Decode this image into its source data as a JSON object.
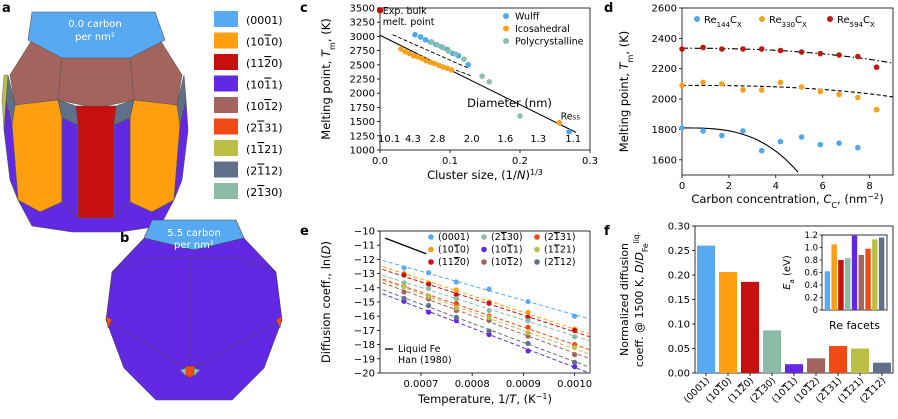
{
  "panels": {
    "a": {
      "letter": "a",
      "label_line1": "0.0 carbon",
      "label_line2": "per nm²",
      "legend": [
        {
          "label": "(0001)",
          "color": "#57aaf2"
        },
        {
          "label": "(1010)",
          "color": "#ff9f0f"
        },
        {
          "label": "(1120)",
          "color": "#c5100e"
        },
        {
          "label": "(1011)",
          "color": "#6328e3"
        },
        {
          "label": "(1012)",
          "color": "#a4645e"
        },
        {
          "label": "(2131)",
          "color": "#f24a14"
        },
        {
          "label": "(1121)",
          "color": "#bcbf45"
        },
        {
          "label": "(2112)",
          "color": "#5f7088"
        },
        {
          "label": "(2130)",
          "color": "#8cbca8"
        }
      ]
    },
    "b": {
      "letter": "b",
      "label_line1": "5.5 carbon",
      "label_line2": "per nm²"
    }
  },
  "chart_data": [
    {
      "id": "c",
      "letter": "c",
      "type": "scatter",
      "ylabel": "Melting point, T_m, (K)",
      "xlabel": "Cluster size, (1/N)^1/3",
      "xlim": [
        0.0,
        0.3
      ],
      "ylim": [
        1000,
        3500
      ],
      "xticks": [
        0.0,
        0.1,
        0.2,
        0.3
      ],
      "xtick_labels": [
        "0.0",
        "0.1",
        "0.2",
        "0.3"
      ],
      "yticks": [
        1000,
        1250,
        1500,
        1750,
        2000,
        2250,
        2500,
        2750,
        3000,
        3250,
        3500
      ],
      "ytick_labels": [
        "1000",
        "1250",
        "1500",
        "1750",
        "2000",
        "2250",
        "2500",
        "2750",
        "3000",
        "3250",
        "3500"
      ],
      "secondary_axis_title": "Diameter (nm)",
      "diameter_labels": [
        {
          "text": "10.1",
          "x": 0.013
        },
        {
          "text": "4.3",
          "x": 0.047
        },
        {
          "text": "2.8",
          "x": 0.082
        },
        {
          "text": "2.0",
          "x": 0.131
        },
        {
          "text": "1.6",
          "x": 0.179
        },
        {
          "text": "1.3",
          "x": 0.226
        },
        {
          "text": "1.1",
          "x": 0.276
        }
      ],
      "annotations": {
        "exp_line1": "Exp. bulk",
        "exp_line2": "melt. point",
        "re55": "Re₅₅"
      },
      "exp_point": {
        "x": 0.0,
        "y": 3459
      },
      "series": [
        {
          "name": "Wulff",
          "color": "#4ea8ea",
          "points": [
            [
              0.05,
              3030
            ],
            [
              0.058,
              2990
            ],
            [
              0.065,
              2940
            ],
            [
              0.072,
              2900
            ],
            [
              0.08,
              2855
            ],
            [
              0.088,
              2815
            ],
            [
              0.096,
              2770
            ],
            [
              0.104,
              2700
            ],
            [
              0.112,
              2660
            ],
            [
              0.126,
              2500
            ],
            [
              0.27,
              1320
            ]
          ]
        },
        {
          "name": "Icosahedral",
          "color": "#f7a21b",
          "points": [
            [
              0.03,
              2780
            ],
            [
              0.036,
              2730
            ],
            [
              0.042,
              2700
            ],
            [
              0.048,
              2660
            ],
            [
              0.054,
              2640
            ],
            [
              0.06,
              2610
            ],
            [
              0.066,
              2570
            ],
            [
              0.072,
              2545
            ],
            [
              0.078,
              2520
            ],
            [
              0.084,
              2490
            ],
            [
              0.09,
              2460
            ],
            [
              0.096,
              2440
            ],
            [
              0.102,
              2410
            ],
            [
              0.256,
              1480
            ]
          ]
        },
        {
          "name": "Polycrystalline",
          "color": "#8dbfae",
          "points": [
            [
              0.074,
              2900
            ],
            [
              0.082,
              2850
            ],
            [
              0.09,
              2800
            ],
            [
              0.098,
              2740
            ],
            [
              0.108,
              2690
            ],
            [
              0.12,
              2600
            ],
            [
              0.146,
              2300
            ],
            [
              0.156,
              2200
            ],
            [
              0.2,
              1600
            ]
          ]
        }
      ],
      "fit_line": {
        "x": [
          0.0,
          0.28
        ],
        "y": [
          3020,
          1310
        ]
      },
      "dashed_lines": [
        {
          "x": [
            0.018,
            0.128
          ],
          "y": [
            3030,
            2430
          ]
        },
        {
          "x": [
            0.028,
            0.132
          ],
          "y": [
            2770,
            2300
          ]
        }
      ]
    },
    {
      "id": "d",
      "letter": "d",
      "type": "scatter",
      "ylabel": "Melting point, T_m, (K)",
      "xlabel": "Carbon concentration, C_C, (nm⁻²)",
      "xlim": [
        0,
        9
      ],
      "ylim": [
        1500,
        2600
      ],
      "xticks": [
        0,
        2,
        4,
        6,
        8
      ],
      "xtick_labels": [
        "0",
        "2",
        "4",
        "6",
        "8"
      ],
      "yticks": [
        1600,
        1800,
        2000,
        2200,
        2400,
        2600
      ],
      "ytick_labels": [
        "1600",
        "1800",
        "2000",
        "2200",
        "2400",
        "2600"
      ],
      "series": [
        {
          "name": "Re₁₄₄C_X",
          "base": "Re",
          "sub": "144",
          "tail": "C",
          "tailsub": "X",
          "color": "#4ea8ea",
          "points": [
            [
              0,
              1810
            ],
            [
              0.9,
              1790
            ],
            [
              1.7,
              1760
            ],
            [
              2.6,
              1790
            ],
            [
              3.4,
              1660
            ],
            [
              4.2,
              1720
            ],
            [
              5.1,
              1750
            ],
            [
              5.9,
              1700
            ],
            [
              6.7,
              1710
            ],
            [
              7.5,
              1680
            ]
          ],
          "curve": {
            "type": "solid",
            "y0": 1810,
            "k": 2.4,
            "p": 3
          }
        },
        {
          "name": "Re₃₃₀C_X",
          "base": "Re",
          "sub": "330",
          "tail": "C",
          "tailsub": "X",
          "color": "#f7a21b",
          "points": [
            [
              0,
              2090
            ],
            [
              0.9,
              2110
            ],
            [
              1.7,
              2100
            ],
            [
              2.6,
              2060
            ],
            [
              3.4,
              2060
            ],
            [
              4.2,
              2110
            ],
            [
              5.1,
              2080
            ],
            [
              5.9,
              2050
            ],
            [
              6.7,
              2030
            ],
            [
              7.5,
              2010
            ],
            [
              8.3,
              1930
            ]
          ],
          "curve": {
            "type": "dashed",
            "y0": 2090,
            "k": 0.25,
            "p": 2.6
          }
        },
        {
          "name": "Re₅₉₄C_X",
          "base": "Re",
          "sub": "594",
          "tail": "C",
          "tailsub": "X",
          "color": "#c0190f",
          "points": [
            [
              0,
              2330
            ],
            [
              0.9,
              2340
            ],
            [
              1.7,
              2330
            ],
            [
              2.6,
              2330
            ],
            [
              3.4,
              2330
            ],
            [
              4.2,
              2320
            ],
            [
              5.1,
              2310
            ],
            [
              5.9,
              2300
            ],
            [
              6.7,
              2290
            ],
            [
              7.5,
              2280
            ],
            [
              8.3,
              2210
            ]
          ],
          "curve": {
            "type": "dashdot",
            "y0": 2335,
            "k": 0.5,
            "p": 2.4
          }
        }
      ]
    },
    {
      "id": "e",
      "letter": "e",
      "type": "line",
      "ylabel": "Diffusion coeff., ln(D)",
      "xlabel": "Temperature, 1/T, (K⁻¹)",
      "xlim": [
        0.00062,
        0.00103
      ],
      "ylim": [
        -20,
        -10
      ],
      "xticks": [
        0.0007,
        0.0008,
        0.0009,
        0.001
      ],
      "xtick_labels": [
        "0.0007",
        "0.0008",
        "0.0009",
        "0.0010"
      ],
      "yticks": [
        -20,
        -19,
        -18,
        -17,
        -16,
        -15,
        -14,
        -13,
        -12,
        -11,
        -10
      ],
      "ytick_labels": [
        "−20",
        "−19",
        "−18",
        "−17",
        "−16",
        "−15",
        "−14",
        "−13",
        "−12",
        "−11",
        "−10"
      ],
      "liquid_fe": {
        "line1": "Liquid Fe",
        "line2": "Han (1980)",
        "x": [
          0.00063,
          0.00071
        ],
        "y": [
          -10.5,
          -11.6
        ]
      },
      "x_points": [
        0.000667,
        0.000715,
        0.000769,
        0.000833,
        0.000909,
        0.001
      ],
      "series": [
        {
          "name": "(0001)",
          "color": "#57aaf2",
          "y_at_start": -12.5,
          "y_at_end": -15.9
        },
        {
          "name": "(1010)",
          "color": "#ff9f0f",
          "y_at_start": -13.0,
          "y_at_end": -16.9
        },
        {
          "name": "(1120)",
          "color": "#c5100e",
          "y_at_start": -13.2,
          "y_at_end": -17.1
        },
        {
          "name": "(2130)",
          "color": "#8cbca8",
          "y_at_start": -13.6,
          "y_at_end": -17.4
        },
        {
          "name": "(1011)",
          "color": "#6328e3",
          "y_at_start": -15.0,
          "y_at_end": -19.6
        },
        {
          "name": "(1012)",
          "color": "#a4645e",
          "y_at_start": -14.2,
          "y_at_end": -18.6
        },
        {
          "name": "(2131)",
          "color": "#f24a14",
          "y_at_start": -13.9,
          "y_at_end": -18.0
        },
        {
          "name": "(1121)",
          "color": "#bcbf45",
          "y_at_start": -14.0,
          "y_at_end": -18.3
        },
        {
          "name": "(2112)",
          "color": "#5f7088",
          "y_at_start": -14.7,
          "y_at_end": -19.2
        }
      ]
    },
    {
      "id": "f",
      "letter": "f",
      "type": "bar",
      "ylabel_line1": "Normalized diffusion",
      "ylabel_line2": "coeff. @ 1500 K, D/D_Fe^liq.",
      "categories": [
        "(0001)",
        "(1010)",
        "(1120)",
        "(2130)",
        "(1011)",
        "(1012)",
        "(2131)",
        "(1121)",
        "(2112)"
      ],
      "colors": [
        "#57aaf2",
        "#ff9f0f",
        "#c5100e",
        "#8cbca8",
        "#6328e3",
        "#a4645e",
        "#f24a14",
        "#bcbf45",
        "#5f7088"
      ],
      "values": [
        0.26,
        0.206,
        0.186,
        0.087,
        0.018,
        0.03,
        0.055,
        0.05,
        0.021
      ],
      "ylim": [
        0,
        0.3
      ],
      "yticks": [
        0.0,
        0.05,
        0.1,
        0.15,
        0.2,
        0.25,
        0.3
      ],
      "ytick_labels": [
        "0.00",
        "0.05",
        "0.10",
        "0.15",
        "0.20",
        "0.25",
        "0.30"
      ],
      "inset": {
        "ylabel": "E_a (eV)",
        "xlabel": "Re facets",
        "ylim": [
          0,
          1.2
        ],
        "yticks": [
          0,
          0.2,
          0.4,
          0.6,
          0.8,
          1.0,
          1.2
        ],
        "ytick_labels": [
          "0",
          "0.2",
          "0.4",
          "0.6",
          "0.8",
          "1.0",
          "1.2"
        ],
        "values": [
          0.62,
          1.05,
          0.8,
          0.83,
          1.19,
          0.88,
          0.98,
          1.13,
          1.16
        ]
      }
    }
  ]
}
